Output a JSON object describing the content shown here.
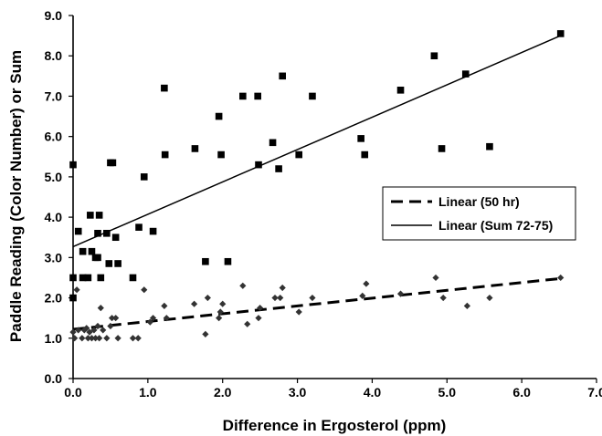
{
  "chart_data": {
    "type": "scatter",
    "title": "",
    "xlabel": "Difference in Ergosterol (ppm)",
    "ylabel": "Paddle Reading (Color Number) or Sum",
    "xlim": [
      0.0,
      7.0
    ],
    "ylim": [
      0.0,
      9.0
    ],
    "x_ticks": [
      "0.0",
      "1.0",
      "2.0",
      "3.0",
      "4.0",
      "5.0",
      "6.0",
      "7.0"
    ],
    "y_ticks": [
      "0.0",
      "1.0",
      "2.0",
      "3.0",
      "4.0",
      "5.0",
      "6.0",
      "7.0",
      "8.0",
      "9.0"
    ],
    "grid": false,
    "legend_position": "middle-right",
    "colors": {
      "square_marker": "#000000",
      "diamond_marker": "#333333",
      "trend_line": "#000000"
    },
    "series": [
      {
        "marker": "square",
        "points": [
          [
            0.0,
            5.3
          ],
          [
            0.0,
            2.5
          ],
          [
            0.0,
            2.0
          ],
          [
            0.07,
            3.65
          ],
          [
            0.13,
            3.15
          ],
          [
            0.13,
            2.5
          ],
          [
            0.2,
            2.5
          ],
          [
            0.23,
            4.05
          ],
          [
            0.25,
            3.15
          ],
          [
            0.3,
            3.0
          ],
          [
            0.33,
            3.0
          ],
          [
            0.33,
            3.6
          ],
          [
            0.35,
            4.05
          ],
          [
            0.37,
            2.5
          ],
          [
            0.45,
            3.6
          ],
          [
            0.48,
            2.85
          ],
          [
            0.5,
            5.35
          ],
          [
            0.53,
            5.35
          ],
          [
            0.57,
            3.5
          ],
          [
            0.6,
            2.85
          ],
          [
            0.8,
            2.5
          ],
          [
            0.88,
            3.75
          ],
          [
            0.95,
            5.0
          ],
          [
            1.07,
            3.65
          ],
          [
            1.22,
            7.2
          ],
          [
            1.23,
            5.55
          ],
          [
            1.63,
            5.7
          ],
          [
            1.77,
            2.9
          ],
          [
            1.95,
            6.5
          ],
          [
            1.98,
            5.55
          ],
          [
            2.07,
            2.9
          ],
          [
            2.27,
            7.0
          ],
          [
            2.47,
            7.0
          ],
          [
            2.48,
            5.3
          ],
          [
            2.67,
            5.85
          ],
          [
            2.75,
            5.2
          ],
          [
            2.8,
            7.5
          ],
          [
            3.02,
            5.55
          ],
          [
            3.2,
            7.0
          ],
          [
            3.85,
            5.95
          ],
          [
            3.9,
            5.55
          ],
          [
            4.38,
            7.15
          ],
          [
            4.83,
            8.0
          ],
          [
            4.93,
            5.7
          ],
          [
            5.25,
            7.55
          ],
          [
            5.57,
            5.75
          ],
          [
            6.52,
            8.55
          ]
        ]
      },
      {
        "marker": "diamond",
        "points": [
          [
            0.0,
            1.15
          ],
          [
            0.02,
            1.0
          ],
          [
            0.05,
            2.2
          ],
          [
            0.07,
            1.2
          ],
          [
            0.12,
            1.0
          ],
          [
            0.15,
            1.2
          ],
          [
            0.18,
            1.25
          ],
          [
            0.2,
            1.0
          ],
          [
            0.22,
            1.15
          ],
          [
            0.25,
            1.0
          ],
          [
            0.28,
            1.2
          ],
          [
            0.3,
            1.0
          ],
          [
            0.33,
            1.3
          ],
          [
            0.35,
            1.0
          ],
          [
            0.37,
            1.75
          ],
          [
            0.4,
            1.2
          ],
          [
            0.45,
            1.0
          ],
          [
            0.5,
            1.3
          ],
          [
            0.52,
            1.5
          ],
          [
            0.57,
            1.5
          ],
          [
            0.6,
            1.0
          ],
          [
            0.8,
            1.0
          ],
          [
            0.87,
            1.0
          ],
          [
            0.95,
            2.2
          ],
          [
            1.03,
            1.4
          ],
          [
            1.07,
            1.5
          ],
          [
            1.22,
            1.8
          ],
          [
            1.25,
            1.5
          ],
          [
            1.62,
            1.85
          ],
          [
            1.77,
            1.1
          ],
          [
            1.8,
            2.0
          ],
          [
            1.95,
            1.5
          ],
          [
            1.97,
            1.65
          ],
          [
            2.0,
            1.85
          ],
          [
            2.27,
            2.3
          ],
          [
            2.33,
            1.35
          ],
          [
            2.48,
            1.5
          ],
          [
            2.5,
            1.75
          ],
          [
            2.7,
            2.0
          ],
          [
            2.77,
            2.0
          ],
          [
            2.8,
            2.25
          ],
          [
            3.02,
            1.65
          ],
          [
            3.2,
            2.0
          ],
          [
            3.87,
            2.05
          ],
          [
            3.92,
            2.35
          ],
          [
            4.38,
            2.1
          ],
          [
            4.85,
            2.5
          ],
          [
            4.95,
            2.0
          ],
          [
            5.27,
            1.8
          ],
          [
            5.57,
            2.0
          ],
          [
            6.52,
            2.5
          ]
        ]
      }
    ],
    "trend_lines": [
      {
        "name": "Linear (50 hr)",
        "style": "dashed",
        "x": [
          0.0,
          6.52
        ],
        "y": [
          1.22,
          2.48
        ]
      },
      {
        "name": "Linear (Sum 72-75)",
        "style": "solid",
        "x": [
          0.0,
          6.52
        ],
        "y": [
          3.27,
          8.5
        ]
      }
    ]
  }
}
